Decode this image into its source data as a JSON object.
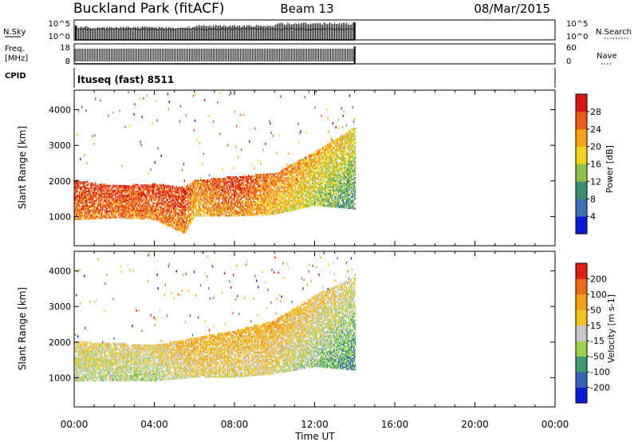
{
  "header": {
    "title": "Buckland Park (fitACF)",
    "beam": "Beam 13",
    "date": "08/Mar/2015"
  },
  "panels": {
    "nsky": {
      "left_label": "N.Sky",
      "left_ticks": [
        "10^5",
        "10^0"
      ],
      "right_ticks": [
        "10^5",
        "10^0"
      ],
      "right_label": "N.Search"
    },
    "freq": {
      "left_label_1": "Freq.",
      "left_label_2": "[MHz]",
      "left_ticks": [
        "18",
        "8"
      ],
      "right_ticks": [
        "60",
        "0"
      ],
      "right_label": "Nave"
    },
    "cpid": {
      "label": "CPID",
      "text": "ltuseq (fast) 8511"
    }
  },
  "chart_data": [
    {
      "type": "heatmap",
      "name": "power",
      "ylabel": "Slant Range [km]",
      "xlabel": "",
      "x_ticks": [
        "00:00",
        "04:00",
        "08:00",
        "12:00",
        "16:00",
        "20:00",
        "00:00"
      ],
      "xlim": [
        0,
        24
      ],
      "ylim": [
        180,
        4550
      ],
      "y_ticks": [
        1000,
        2000,
        3000,
        4000
      ],
      "data_end_hour": 14.0,
      "colorbar": {
        "label": "Power [dB]",
        "ticks": [
          "4",
          "8",
          "12",
          "16",
          "20",
          "24",
          "28"
        ],
        "colors": [
          "#0b1bd8",
          "#3f6fb4",
          "#3b8f70",
          "#8fc24a",
          "#f0d41e",
          "#f5a11a",
          "#ef5a18",
          "#d71512"
        ]
      },
      "bands": [
        {
          "hour": 0,
          "low": 900,
          "high": 2000,
          "level": 6
        },
        {
          "hour": 2,
          "low": 950,
          "high": 1850,
          "level": 6
        },
        {
          "hour": 4,
          "low": 900,
          "high": 1900,
          "level": 6
        },
        {
          "hour": 5.5,
          "low": 500,
          "high": 1800,
          "level": 6
        },
        {
          "hour": 6,
          "low": 1000,
          "high": 2000,
          "level": 5
        },
        {
          "hour": 8,
          "low": 1000,
          "high": 2100,
          "level": 6
        },
        {
          "hour": 10,
          "low": 1050,
          "high": 2200,
          "level": 5
        },
        {
          "hour": 12,
          "low": 1300,
          "high": 2800,
          "level": 4
        },
        {
          "hour": 14,
          "low": 1200,
          "high": 3500,
          "level": 3
        }
      ]
    },
    {
      "type": "heatmap",
      "name": "velocity",
      "ylabel": "Slant Range [km]",
      "xlabel": "Time UT",
      "x_ticks": [
        "00:00",
        "04:00",
        "08:00",
        "12:00",
        "16:00",
        "20:00",
        "00:00"
      ],
      "xlim": [
        0,
        24
      ],
      "ylim": [
        180,
        4550
      ],
      "y_ticks": [
        1000,
        2000,
        3000,
        4000
      ],
      "data_end_hour": 14.0,
      "colorbar": {
        "label": "Velocity [m s-1]",
        "ticks": [
          "200",
          "100",
          "50",
          "15",
          "-15",
          "-50",
          "-100",
          "-200"
        ],
        "colors": [
          "#0b1bd8",
          "#3a64b8",
          "#3d9a73",
          "#9fd34c",
          "#c9c9c9",
          "#f2c21c",
          "#f3a017",
          "#ee6a16",
          "#de1f12"
        ]
      },
      "bands": [
        {
          "hour": 0,
          "low": 900,
          "high": 2000,
          "level": 4
        },
        {
          "hour": 4,
          "low": 900,
          "high": 1900,
          "level": 4
        },
        {
          "hour": 6,
          "low": 1000,
          "high": 2100,
          "level": 5
        },
        {
          "hour": 8,
          "low": 1000,
          "high": 2300,
          "level": 5
        },
        {
          "hour": 10,
          "low": 1100,
          "high": 2600,
          "level": 5
        },
        {
          "hour": 12,
          "low": 1300,
          "high": 3300,
          "level": 4
        },
        {
          "hour": 14,
          "low": 1200,
          "high": 3800,
          "level": 3
        }
      ]
    }
  ]
}
